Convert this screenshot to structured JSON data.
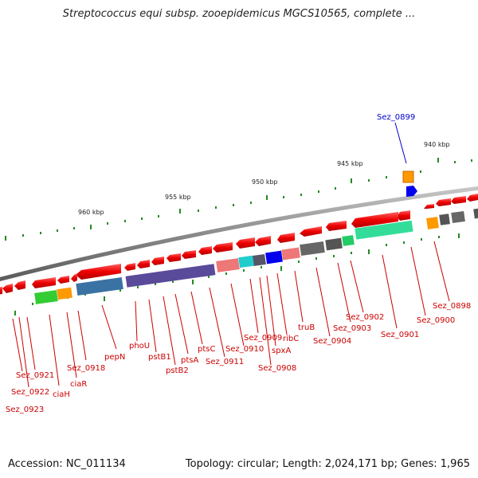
{
  "title": "Streptococcus equi subsp. zooepidemicus MGCS10565, complete ...",
  "footer": {
    "accession": "Accession: NC_011134",
    "topology": "Topology: circular; Length: 2,024,171 bp; Genes: 1,965"
  },
  "colors": {
    "backbone": "#888888",
    "gene_arrow": "#ff0000",
    "label_red": "#cc0000",
    "label_blue": "#0000cc",
    "tick": "#228b22"
  },
  "kbp_labels": [
    "940 kbp",
    "945 kbp",
    "950 kbp",
    "955 kbp",
    "960 kbp"
  ],
  "gene_labels": {
    "sez_0899": "Sez_0899",
    "sez_0898": "Sez_0898",
    "sez_0900": "Sez_0900",
    "sez_0901": "Sez_0901",
    "sez_0902": "Sez_0902",
    "sez_0903": "Sez_0903",
    "sez_0904": "Sez_0904",
    "trub": "truB",
    "ribc": "ribC",
    "spxa": "spxA",
    "sez_0908": "Sez_0908",
    "sez_0909": "Sez_0909",
    "sez_0910": "Sez_0910",
    "sez_0911": "Sez_0911",
    "ptsc": "ptsC",
    "ptsa": "ptsA",
    "pstb2": "pstB2",
    "pstb1": "pstB1",
    "phou": "phoU",
    "pepn": "pepN",
    "sez_0918": "Sez_0918",
    "ciar": "ciaR",
    "ciah": "ciaH",
    "sez_0921": "Sez_0921",
    "sez_0922": "Sez_0922",
    "sez_0923": "Sez_0923"
  }
}
